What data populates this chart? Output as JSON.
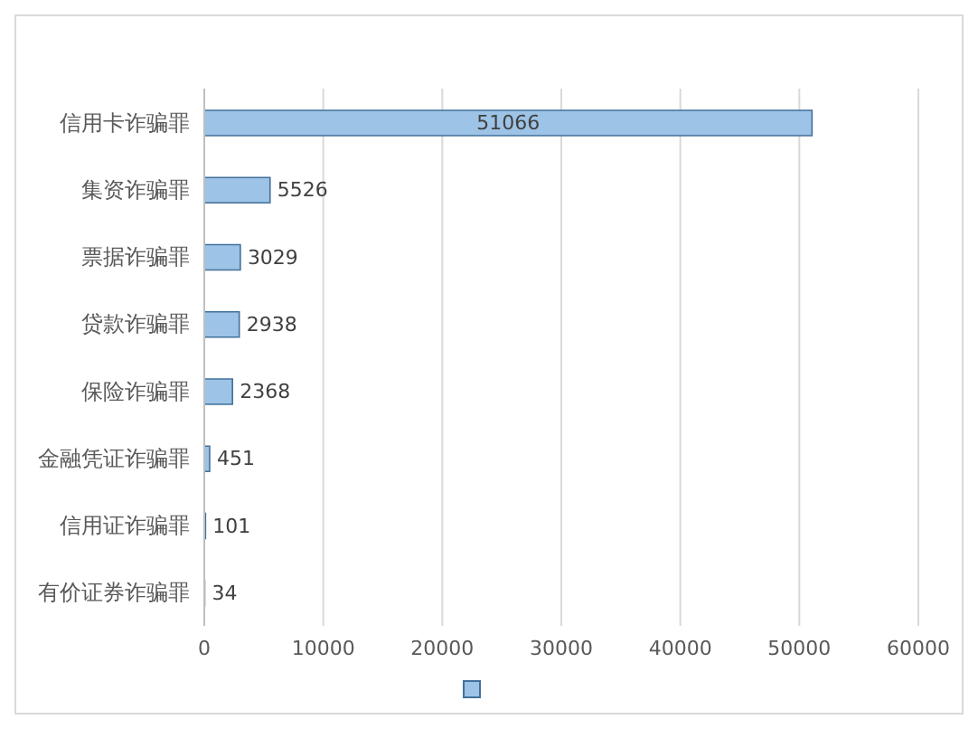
{
  "chart_data": {
    "type": "bar",
    "orientation": "horizontal",
    "categories": [
      "信用卡诈骗罪",
      "集资诈骗罪",
      "票据诈骗罪",
      "贷款诈骗罪",
      "保险诈骗罪",
      "金融凭证诈骗罪",
      "信用证诈骗罪",
      "有价证券诈骗罪"
    ],
    "series": [
      {
        "color": "#9dc3e6",
        "values": [
          51066,
          5526,
          3029,
          2938,
          2368,
          451,
          101,
          34
        ]
      }
    ],
    "xlim": [
      0,
      60000
    ],
    "xticks": [
      0,
      10000,
      20000,
      30000,
      40000,
      50000,
      60000
    ],
    "grid": "x",
    "data_labels": true
  }
}
